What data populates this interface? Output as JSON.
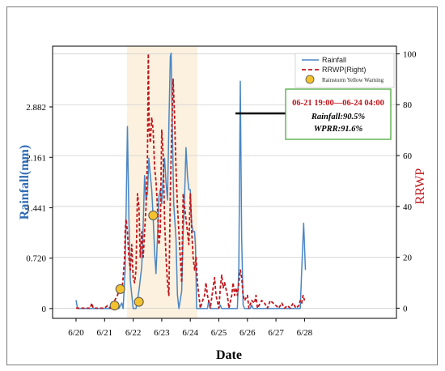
{
  "chart_data": {
    "type": "line",
    "xlabel": "Date",
    "ylabel_left": "Rainfall(mm)",
    "ylabel_right": "RRWP",
    "x_start": "6/20",
    "x_ticks": [
      "6/20",
      "6/21",
      "6/22",
      "6/23",
      "6/24",
      "6/25",
      "6/26",
      "6/27",
      "6/28"
    ],
    "x_range_days": [
      0,
      8.2
    ],
    "y_left_ticks": [
      "0",
      "0.720",
      "1.441",
      "2.161",
      "2.882"
    ],
    "y_left_tick_values": [
      0,
      0.72,
      1.441,
      2.161,
      2.882
    ],
    "y_left_range": [
      -0.14,
      3.75
    ],
    "y_right_ticks": [
      "0",
      "20",
      "40",
      "60",
      "80",
      "100"
    ],
    "y_right_tick_values": [
      0,
      20,
      40,
      60,
      80,
      100
    ],
    "y_right_range": [
      -4,
      103
    ],
    "grid": "horizontal",
    "highlight_period_days": [
      1.78,
      4.25
    ],
    "legend_position": "top-right",
    "series": [
      {
        "name": "Rainfall",
        "axis": "left",
        "color": "#4a86c5",
        "style": "solid",
        "points": [
          [
            0.0,
            0.12
          ],
          [
            0.05,
            0.0
          ],
          [
            1.3,
            0.0
          ],
          [
            1.5,
            0.0
          ],
          [
            1.6,
            0.08
          ],
          [
            1.65,
            0.0
          ],
          [
            1.72,
            0.55
          ],
          [
            1.8,
            2.6
          ],
          [
            1.85,
            1.3
          ],
          [
            1.9,
            0.4
          ],
          [
            1.95,
            0.2
          ],
          [
            2.0,
            0.0
          ],
          [
            2.1,
            0.0
          ],
          [
            2.2,
            0.25
          ],
          [
            2.3,
            0.6
          ],
          [
            2.35,
            1.2
          ],
          [
            2.4,
            1.9
          ],
          [
            2.45,
            1.55
          ],
          [
            2.5,
            1.65
          ],
          [
            2.55,
            2.15
          ],
          [
            2.6,
            1.9
          ],
          [
            2.65,
            1.7
          ],
          [
            2.7,
            1.3
          ],
          [
            2.75,
            0.8
          ],
          [
            2.8,
            0.5
          ],
          [
            2.85,
            1.0
          ],
          [
            2.9,
            1.6
          ],
          [
            2.95,
            1.7
          ],
          [
            3.0,
            1.5
          ],
          [
            3.05,
            1.9
          ],
          [
            3.1,
            2.15
          ],
          [
            3.15,
            1.8
          ],
          [
            3.2,
            1.55
          ],
          [
            3.25,
            2.6
          ],
          [
            3.3,
            3.6
          ],
          [
            3.33,
            3.65
          ],
          [
            3.38,
            2.4
          ],
          [
            3.42,
            1.5
          ],
          [
            3.45,
            1.3
          ],
          [
            3.5,
            1.0
          ],
          [
            3.55,
            0.2
          ],
          [
            3.6,
            0.0
          ],
          [
            3.7,
            0.25
          ],
          [
            3.75,
            1.1
          ],
          [
            3.8,
            1.6
          ],
          [
            3.85,
            2.3
          ],
          [
            3.9,
            1.9
          ],
          [
            3.95,
            1.7
          ],
          [
            4.0,
            1.7
          ],
          [
            4.05,
            1.2
          ],
          [
            4.1,
            1.1
          ],
          [
            4.15,
            1.1
          ],
          [
            4.18,
            0.9
          ],
          [
            4.22,
            0.0
          ],
          [
            4.6,
            0.0
          ],
          [
            4.65,
            0.12
          ],
          [
            4.7,
            0.0
          ],
          [
            5.0,
            0.0
          ],
          [
            5.05,
            0.05
          ],
          [
            5.1,
            0.0
          ],
          [
            5.65,
            0.0
          ],
          [
            5.7,
            0.6
          ],
          [
            5.75,
            3.25
          ],
          [
            5.8,
            1.0
          ],
          [
            5.85,
            0.05
          ],
          [
            5.9,
            0.0
          ],
          [
            6.1,
            0.0
          ],
          [
            6.15,
            0.05
          ],
          [
            6.2,
            0.0
          ],
          [
            7.85,
            0.0
          ],
          [
            7.9,
            0.55
          ],
          [
            7.97,
            1.22
          ],
          [
            8.03,
            0.55
          ]
        ]
      },
      {
        "name": "RRWP(Right)",
        "axis": "right",
        "color": "#c0151b",
        "style": "dashed",
        "points": [
          [
            0.0,
            0
          ],
          [
            0.5,
            0
          ],
          [
            0.55,
            2
          ],
          [
            0.6,
            0
          ],
          [
            1.0,
            0
          ],
          [
            1.1,
            1
          ],
          [
            1.2,
            0
          ],
          [
            1.3,
            1
          ],
          [
            1.35,
            3
          ],
          [
            1.45,
            5
          ],
          [
            1.5,
            7
          ],
          [
            1.55,
            9
          ],
          [
            1.6,
            6
          ],
          [
            1.65,
            12
          ],
          [
            1.7,
            20
          ],
          [
            1.72,
            30
          ],
          [
            1.75,
            35
          ],
          [
            1.8,
            30
          ],
          [
            1.85,
            20
          ],
          [
            1.9,
            15
          ],
          [
            1.95,
            25
          ],
          [
            2.0,
            12
          ],
          [
            2.05,
            10
          ],
          [
            2.1,
            15
          ],
          [
            2.15,
            45
          ],
          [
            2.2,
            40
          ],
          [
            2.25,
            20
          ],
          [
            2.3,
            30
          ],
          [
            2.35,
            20
          ],
          [
            2.4,
            30
          ],
          [
            2.45,
            40
          ],
          [
            2.5,
            60
          ],
          [
            2.53,
            100
          ],
          [
            2.56,
            70
          ],
          [
            2.6,
            65
          ],
          [
            2.65,
            75
          ],
          [
            2.7,
            70
          ],
          [
            2.75,
            55
          ],
          [
            2.8,
            50
          ],
          [
            2.85,
            40
          ],
          [
            2.9,
            25
          ],
          [
            2.95,
            30
          ],
          [
            3.0,
            70
          ],
          [
            3.05,
            60
          ],
          [
            3.1,
            35
          ],
          [
            3.15,
            20
          ],
          [
            3.2,
            10
          ],
          [
            3.25,
            5
          ],
          [
            3.3,
            45
          ],
          [
            3.35,
            70
          ],
          [
            3.4,
            90
          ],
          [
            3.45,
            75
          ],
          [
            3.5,
            55
          ],
          [
            3.55,
            40
          ],
          [
            3.6,
            30
          ],
          [
            3.65,
            20
          ],
          [
            3.7,
            10
          ],
          [
            3.75,
            45
          ],
          [
            3.8,
            40
          ],
          [
            3.85,
            35
          ],
          [
            3.9,
            30
          ],
          [
            3.95,
            25
          ],
          [
            4.0,
            45
          ],
          [
            4.05,
            30
          ],
          [
            4.1,
            20
          ],
          [
            4.15,
            15
          ],
          [
            4.2,
            20
          ],
          [
            4.25,
            10
          ],
          [
            4.3,
            5
          ],
          [
            4.35,
            0
          ],
          [
            4.4,
            2
          ],
          [
            4.5,
            5
          ],
          [
            4.55,
            10
          ],
          [
            4.6,
            5
          ],
          [
            4.7,
            0
          ],
          [
            4.8,
            8
          ],
          [
            4.85,
            12
          ],
          [
            4.9,
            5
          ],
          [
            5.0,
            0
          ],
          [
            5.05,
            8
          ],
          [
            5.1,
            13
          ],
          [
            5.15,
            8
          ],
          [
            5.2,
            10
          ],
          [
            5.3,
            5
          ],
          [
            5.35,
            0
          ],
          [
            5.45,
            5
          ],
          [
            5.5,
            10
          ],
          [
            5.55,
            5
          ],
          [
            5.6,
            8
          ],
          [
            5.65,
            5
          ],
          [
            5.7,
            10
          ],
          [
            5.75,
            15
          ],
          [
            5.8,
            12
          ],
          [
            5.85,
            5
          ],
          [
            5.9,
            3
          ],
          [
            6.0,
            5
          ],
          [
            6.05,
            0
          ],
          [
            6.15,
            3
          ],
          [
            6.25,
            2
          ],
          [
            6.3,
            5
          ],
          [
            6.35,
            0
          ],
          [
            6.5,
            3
          ],
          [
            6.6,
            2
          ],
          [
            6.7,
            0
          ],
          [
            6.8,
            3
          ],
          [
            6.9,
            2
          ],
          [
            7.0,
            1
          ],
          [
            7.1,
            0
          ],
          [
            7.2,
            2
          ],
          [
            7.3,
            0
          ],
          [
            7.4,
            1
          ],
          [
            7.5,
            0
          ],
          [
            7.6,
            2
          ],
          [
            7.7,
            0
          ],
          [
            7.8,
            1
          ],
          [
            7.85,
            3
          ],
          [
            7.9,
            2
          ],
          [
            7.95,
            5
          ],
          [
            8.0,
            3
          ]
        ]
      },
      {
        "name": "Rainstorm Yellow Warning",
        "axis": "right",
        "color": "#f2c12e",
        "style": "marker",
        "points": [
          [
            1.35,
            1
          ],
          [
            1.55,
            7.5
          ],
          [
            2.2,
            2.5
          ],
          [
            2.7,
            36.5
          ]
        ]
      }
    ],
    "annotation": {
      "period": "06-21 19:00—06-24 04:00",
      "rainfall": "Rainfall:90.5%",
      "wpr": "WPRR:91.6%",
      "border_color": "#3fa32e"
    }
  }
}
